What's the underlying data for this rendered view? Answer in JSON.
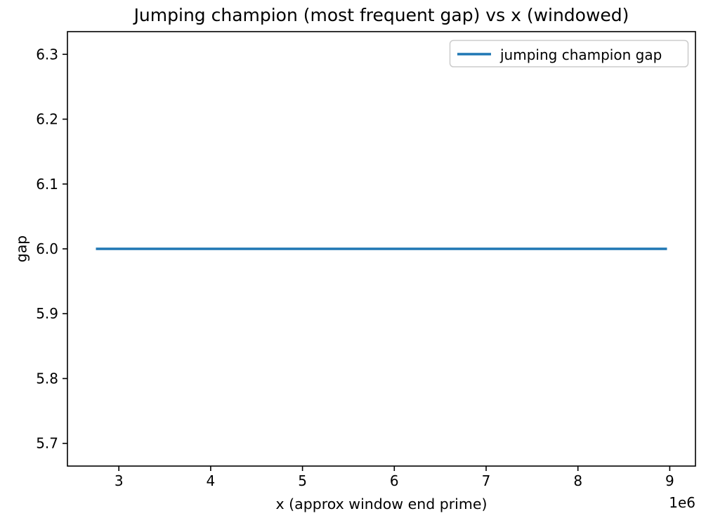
{
  "figure": {
    "background": "#ffffff",
    "axis_color": "#000000",
    "text_color": "#000000"
  },
  "chart_data": {
    "type": "line",
    "title": "Jumping champion (most frequent gap) vs x (windowed)",
    "xlabel": "x (approx window end prime)",
    "ylabel": "gap",
    "x_offset_label": "1e6",
    "xlim": [
      2440000,
      9280000
    ],
    "ylim": [
      5.665,
      6.335
    ],
    "xticks": [
      3000000,
      4000000,
      5000000,
      6000000,
      7000000,
      8000000,
      9000000
    ],
    "xtick_labels": [
      "3",
      "4",
      "5",
      "6",
      "7",
      "8",
      "9"
    ],
    "yticks": [
      5.7,
      5.8,
      5.9,
      6.0,
      6.1,
      6.2,
      6.3
    ],
    "ytick_labels": [
      "5.7",
      "5.8",
      "5.9",
      "6.0",
      "6.1",
      "6.2",
      "6.3"
    ],
    "grid": false,
    "legend": {
      "position": "upper right",
      "entries": [
        {
          "label": "jumping champion gap",
          "color": "#1f77b4"
        }
      ]
    },
    "series": [
      {
        "name": "jumping champion gap",
        "color": "#1f77b4",
        "x": [
          2750000,
          8970000
        ],
        "y": [
          6.0,
          6.0
        ]
      }
    ]
  }
}
